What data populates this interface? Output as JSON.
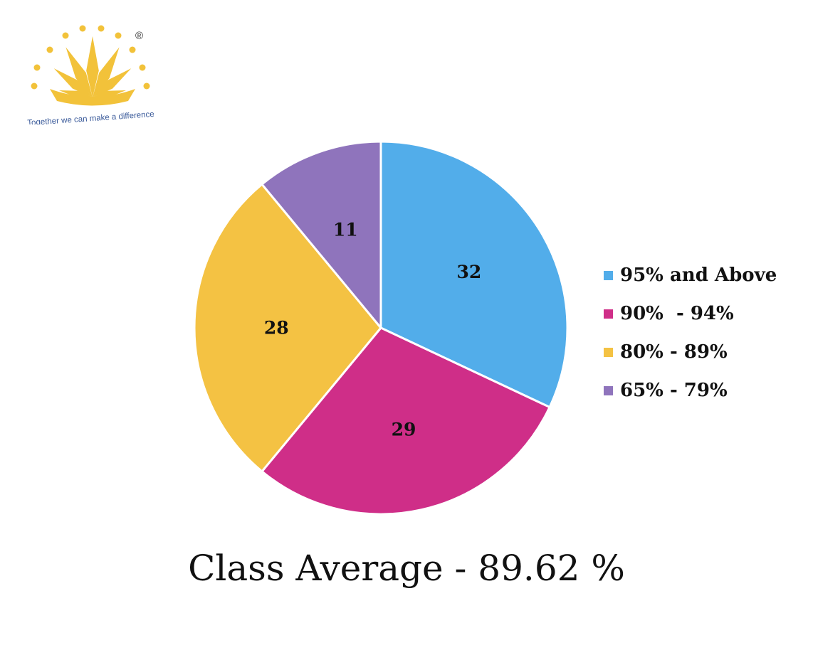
{
  "logo": {
    "tagline": "Together we can make a difference",
    "registered_mark": "®",
    "color": "#F2C23A"
  },
  "chart_data": {
    "type": "pie",
    "categories": [
      "95% and Above",
      "90%  - 94%",
      "80% - 89%",
      "65% - 79%"
    ],
    "values": [
      32,
      29,
      28,
      11
    ],
    "colors": [
      "#52ADEA",
      "#CF2E88",
      "#F4C243",
      "#8F74BC"
    ],
    "legend_position": "right",
    "data_labels": true
  },
  "caption": "Class Average - 89.62 %"
}
